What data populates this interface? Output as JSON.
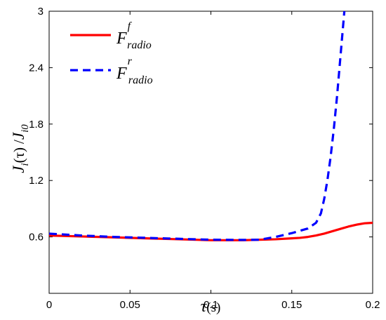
{
  "chart_data": {
    "type": "line",
    "xlabel": {
      "main": "τ",
      "suffix": "(s)"
    },
    "ylabel": {
      "j": "J",
      "sub_i": "i",
      "arg": "(τ)",
      "slash": "/",
      "j0": "J",
      "sub_i0": "i0"
    },
    "xlim": [
      0,
      0.2
    ],
    "ylim": [
      0,
      3
    ],
    "xticks": [
      0,
      0.05,
      0.1,
      0.15,
      0.2
    ],
    "xtick_labels": [
      "0",
      "0.05",
      "0.1",
      "0.15",
      "0.2"
    ],
    "yticks": [
      0.6,
      1.2,
      1.8,
      2.4,
      3
    ],
    "ytick_labels": [
      "0.6",
      "1.2",
      "1.8",
      "2.4",
      "3"
    ],
    "grid": false,
    "legend_position": "top-left",
    "series": [
      {
        "name": "F_radio^f",
        "legend": {
          "base": "F",
          "sup": "f",
          "sub": "radio"
        },
        "color": "#ff0000",
        "style": "solid",
        "x": [
          0,
          0.02,
          0.04,
          0.06,
          0.08,
          0.1,
          0.12,
          0.14,
          0.15,
          0.155,
          0.16,
          0.165,
          0.17,
          0.175,
          0.18,
          0.185,
          0.19,
          0.195,
          0.2
        ],
        "y": [
          0.615,
          0.605,
          0.595,
          0.585,
          0.575,
          0.565,
          0.565,
          0.575,
          0.585,
          0.59,
          0.6,
          0.615,
          0.635,
          0.66,
          0.685,
          0.71,
          0.73,
          0.745,
          0.75
        ]
      },
      {
        "name": "F_radio^r",
        "legend": {
          "base": "F",
          "sup": "r",
          "sub": "radio"
        },
        "color": "#0000ff",
        "style": "dashed",
        "x": [
          0,
          0.02,
          0.04,
          0.06,
          0.08,
          0.1,
          0.12,
          0.13,
          0.14,
          0.15,
          0.16,
          0.165,
          0.168,
          0.17,
          0.172,
          0.174,
          0.176,
          0.178,
          0.18,
          0.182,
          0.184
        ],
        "y": [
          0.635,
          0.615,
          0.6,
          0.59,
          0.58,
          0.57,
          0.568,
          0.57,
          0.6,
          0.64,
          0.69,
          0.75,
          0.85,
          1.0,
          1.2,
          1.45,
          1.75,
          2.1,
          2.5,
          2.9,
          3.3
        ]
      }
    ]
  }
}
